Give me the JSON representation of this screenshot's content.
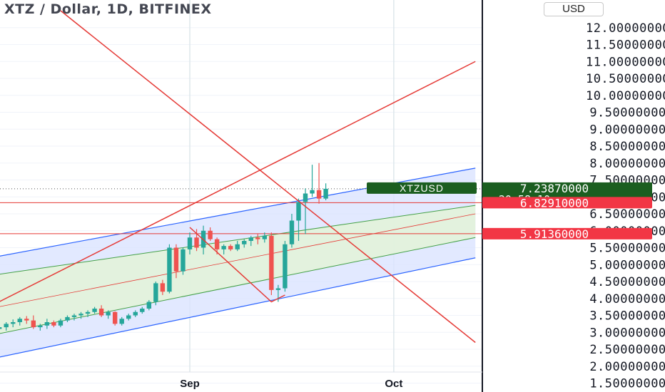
{
  "header": {
    "title": "XTZ / Dollar, 1D, BITFINEX",
    "currency_label": "USD"
  },
  "colors": {
    "up": "#26a69a",
    "down": "#ef5350",
    "trendline": "#e53935",
    "channel_outer": "#2962ff",
    "channel_inner": "#43a047",
    "channel_mid": "#e53935",
    "outer_fill": "#dbe4ff",
    "inner_fill": "#e3f2dc",
    "price_tag_last": "#1b5e20",
    "price_tag_red": "#f23645",
    "axis_line": "#131722"
  },
  "chart_data": {
    "type": "candlestick",
    "title": "XTZ / Dollar, 1D, BITFINEX",
    "y_axis": {
      "scale": "linear",
      "ylim": [
        1.3,
        12.3
      ],
      "tick_labels": [
        "1.50000000",
        "2.00000000",
        "2.50000000",
        "3.00000000",
        "3.50000000",
        "4.00000000",
        "4.50000000",
        "5.00000000",
        "5.50000000",
        "6.00000000",
        "6.50000000",
        "7.00000000",
        "7.50000000",
        "8.00000000",
        "8.50000000",
        "9.00000000",
        "9.50000000",
        "10.00000000",
        "10.50000000",
        "11.00000000",
        "11.50000000",
        "12.00000000"
      ],
      "tick_values": [
        1.5,
        2,
        2.5,
        3,
        3.5,
        4,
        4.5,
        5,
        5.5,
        6,
        6.5,
        7,
        7.5,
        8,
        8.5,
        9,
        9.5,
        10,
        10.5,
        11,
        11.5,
        12
      ]
    },
    "x_axis": {
      "tick_labels": [
        "Sep",
        "Oct"
      ],
      "tick_dates": [
        "2021-09-01",
        "2021-10-01"
      ]
    },
    "grid": true,
    "candles": [
      {
        "date": "2021-08-01",
        "open": 2.95,
        "high": 3.05,
        "low": 2.85,
        "close": 3.0
      },
      {
        "date": "2021-08-02",
        "open": 3.0,
        "high": 3.12,
        "low": 2.95,
        "close": 3.05
      },
      {
        "date": "2021-08-03",
        "open": 3.05,
        "high": 3.2,
        "low": 3.0,
        "close": 3.1
      },
      {
        "date": "2021-08-04",
        "open": 3.1,
        "high": 3.22,
        "low": 3.0,
        "close": 3.15
      },
      {
        "date": "2021-08-05",
        "open": 3.15,
        "high": 3.3,
        "low": 3.05,
        "close": 3.25
      },
      {
        "date": "2021-08-06",
        "open": 3.25,
        "high": 3.38,
        "low": 3.15,
        "close": 3.3
      },
      {
        "date": "2021-08-07",
        "open": 3.3,
        "high": 3.45,
        "low": 3.2,
        "close": 3.4
      },
      {
        "date": "2021-08-08",
        "open": 3.4,
        "high": 3.48,
        "low": 3.25,
        "close": 3.35
      },
      {
        "date": "2021-08-09",
        "open": 3.35,
        "high": 3.5,
        "low": 3.1,
        "close": 3.15
      },
      {
        "date": "2021-08-10",
        "open": 3.15,
        "high": 3.25,
        "low": 3.05,
        "close": 3.2
      },
      {
        "date": "2021-08-11",
        "open": 3.2,
        "high": 3.4,
        "low": 3.1,
        "close": 3.3
      },
      {
        "date": "2021-08-12",
        "open": 3.3,
        "high": 3.35,
        "low": 3.15,
        "close": 3.2
      },
      {
        "date": "2021-08-13",
        "open": 3.2,
        "high": 3.4,
        "low": 3.15,
        "close": 3.35
      },
      {
        "date": "2021-08-14",
        "open": 3.35,
        "high": 3.5,
        "low": 3.3,
        "close": 3.45
      },
      {
        "date": "2021-08-15",
        "open": 3.45,
        "high": 3.55,
        "low": 3.35,
        "close": 3.5
      },
      {
        "date": "2021-08-16",
        "open": 3.5,
        "high": 3.6,
        "low": 3.4,
        "close": 3.55
      },
      {
        "date": "2021-08-17",
        "open": 3.55,
        "high": 3.65,
        "low": 3.45,
        "close": 3.6
      },
      {
        "date": "2021-08-18",
        "open": 3.6,
        "high": 3.75,
        "low": 3.55,
        "close": 3.7
      },
      {
        "date": "2021-08-19",
        "open": 3.7,
        "high": 3.8,
        "low": 3.45,
        "close": 3.5
      },
      {
        "date": "2021-08-20",
        "open": 3.5,
        "high": 3.65,
        "low": 3.4,
        "close": 3.6
      },
      {
        "date": "2021-08-21",
        "open": 3.6,
        "high": 3.62,
        "low": 3.2,
        "close": 3.25
      },
      {
        "date": "2021-08-22",
        "open": 3.25,
        "high": 3.45,
        "low": 3.2,
        "close": 3.4
      },
      {
        "date": "2021-08-23",
        "open": 3.4,
        "high": 3.55,
        "low": 3.35,
        "close": 3.5
      },
      {
        "date": "2021-08-24",
        "open": 3.5,
        "high": 3.65,
        "low": 3.45,
        "close": 3.6
      },
      {
        "date": "2021-08-25",
        "open": 3.6,
        "high": 3.75,
        "low": 3.55,
        "close": 3.7
      },
      {
        "date": "2021-08-26",
        "open": 3.7,
        "high": 3.95,
        "low": 3.65,
        "close": 3.9
      },
      {
        "date": "2021-08-27",
        "open": 3.9,
        "high": 4.5,
        "low": 3.8,
        "close": 4.45
      },
      {
        "date": "2021-08-28",
        "open": 4.45,
        "high": 4.55,
        "low": 4.1,
        "close": 4.2
      },
      {
        "date": "2021-08-29",
        "open": 4.2,
        "high": 5.6,
        "low": 4.15,
        "close": 5.5
      },
      {
        "date": "2021-08-30",
        "open": 5.5,
        "high": 5.6,
        "low": 4.6,
        "close": 4.8
      },
      {
        "date": "2021-08-31",
        "open": 4.8,
        "high": 5.5,
        "low": 4.7,
        "close": 5.45
      },
      {
        "date": "2021-09-01",
        "open": 5.45,
        "high": 5.95,
        "low": 5.3,
        "close": 5.8
      },
      {
        "date": "2021-09-02",
        "open": 5.8,
        "high": 6.05,
        "low": 5.4,
        "close": 5.5
      },
      {
        "date": "2021-09-03",
        "open": 5.5,
        "high": 6.15,
        "low": 5.3,
        "close": 6.0
      },
      {
        "date": "2021-09-04",
        "open": 6.0,
        "high": 6.1,
        "low": 5.7,
        "close": 5.75
      },
      {
        "date": "2021-09-05",
        "open": 5.75,
        "high": 5.8,
        "low": 5.3,
        "close": 5.45
      },
      {
        "date": "2021-09-06",
        "open": 5.45,
        "high": 5.6,
        "low": 5.3,
        "close": 5.55
      },
      {
        "date": "2021-09-07",
        "open": 5.55,
        "high": 5.6,
        "low": 5.4,
        "close": 5.45
      },
      {
        "date": "2021-09-08",
        "open": 5.45,
        "high": 5.7,
        "low": 5.4,
        "close": 5.6
      },
      {
        "date": "2021-09-09",
        "open": 5.6,
        "high": 5.75,
        "low": 5.5,
        "close": 5.7
      },
      {
        "date": "2021-09-10",
        "open": 5.7,
        "high": 5.85,
        "low": 5.55,
        "close": 5.8
      },
      {
        "date": "2021-09-11",
        "open": 5.8,
        "high": 5.9,
        "low": 5.6,
        "close": 5.75
      },
      {
        "date": "2021-09-12",
        "open": 5.75,
        "high": 5.95,
        "low": 5.65,
        "close": 5.85
      },
      {
        "date": "2021-09-13",
        "open": 5.85,
        "high": 5.95,
        "low": 4.1,
        "close": 4.25
      },
      {
        "date": "2021-09-14",
        "open": 4.25,
        "high": 4.4,
        "low": 3.9,
        "close": 4.3
      },
      {
        "date": "2021-09-15",
        "open": 4.3,
        "high": 5.7,
        "low": 4.2,
        "close": 5.6
      },
      {
        "date": "2021-09-16",
        "open": 5.6,
        "high": 6.5,
        "low": 5.5,
        "close": 6.3
      },
      {
        "date": "2021-09-17",
        "open": 6.3,
        "high": 6.95,
        "low": 5.7,
        "close": 6.85
      },
      {
        "date": "2021-09-18",
        "open": 6.85,
        "high": 7.25,
        "low": 5.9,
        "close": 7.1
      },
      {
        "date": "2021-09-19",
        "open": 7.1,
        "high": 7.95,
        "low": 7.0,
        "close": 7.2
      },
      {
        "date": "2021-09-20",
        "open": 7.2,
        "high": 8.0,
        "low": 6.8,
        "close": 6.95
      },
      {
        "date": "2021-09-21",
        "open": 6.95,
        "high": 7.4,
        "low": 6.9,
        "close": 7.24
      }
    ],
    "drawings": {
      "channel_outer_upper": [
        {
          "x": "2021-07-31",
          "y": 5.1
        },
        {
          "x": "2021-10-13",
          "y": 7.85
        }
      ],
      "channel_outer_lower": [
        {
          "x": "2021-07-31",
          "y": 2.1
        },
        {
          "x": "2021-10-13",
          "y": 5.2
        }
      ],
      "channel_inner_upper": [
        {
          "x": "2021-07-31",
          "y": 4.6
        },
        {
          "x": "2021-10-13",
          "y": 6.75
        }
      ],
      "channel_inner_lower": [
        {
          "x": "2021-07-31",
          "y": 2.8
        },
        {
          "x": "2021-10-13",
          "y": 5.8
        }
      ],
      "channel_median": [
        {
          "x": "2021-07-31",
          "y": 3.6
        },
        {
          "x": "2021-10-13",
          "y": 6.5
        }
      ],
      "rising_trendline": [
        {
          "x": "2021-07-31",
          "y": 3.5
        },
        {
          "x": "2021-10-13",
          "y": 11.0
        }
      ],
      "falling_trendline": [
        {
          "x": "2021-08-13",
          "y": 12.5
        },
        {
          "x": "2021-10-13",
          "y": 2.7
        }
      ],
      "zigzag": [
        {
          "x": "2021-09-01",
          "y": 6.1
        },
        {
          "x": "2021-09-13",
          "y": 3.9
        },
        {
          "x": "2021-09-15",
          "y": 4.1
        }
      ],
      "horizontal_levels": [
        6.8291,
        5.9136
      ]
    },
    "last_price": 7.2387,
    "countdown": "20:58:10",
    "price_labels": [
      {
        "series": "XTZUSD",
        "value_text": "7.23870000",
        "sub_text": "20:58:10",
        "kind": "last"
      },
      {
        "value_text": "6.82910000",
        "kind": "level"
      },
      {
        "value_text": "5.91360000",
        "kind": "level"
      }
    ]
  }
}
